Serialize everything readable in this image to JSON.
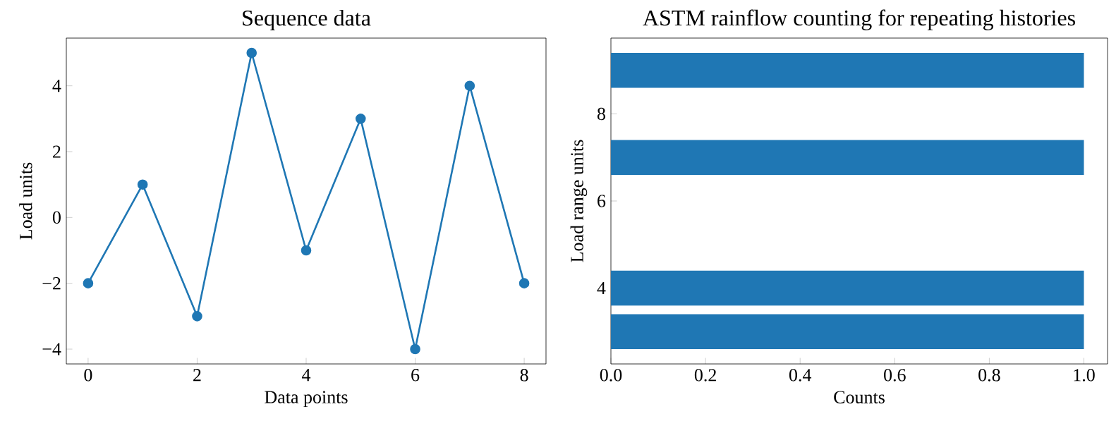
{
  "chart_data": [
    {
      "type": "line",
      "title": "Sequence data",
      "xlabel": "Data points",
      "ylabel": "Load units",
      "x": [
        0,
        1,
        2,
        3,
        4,
        5,
        6,
        7,
        8
      ],
      "series": [
        {
          "color": "#1f77b4",
          "values": [
            -2,
            1,
            -3,
            5,
            -1,
            3,
            -4,
            4,
            -2
          ]
        }
      ],
      "marker": "circle",
      "line_style": "solid",
      "xlim": [
        -0.4,
        8.4
      ],
      "ylim": [
        -4.45,
        5.45
      ],
      "xticks": [
        0,
        2,
        4,
        6,
        8
      ],
      "yticks": [
        {
          "value": -4,
          "label": "−4"
        },
        {
          "value": -2,
          "label": "−2"
        },
        0,
        2,
        4
      ]
    },
    {
      "type": "bar",
      "orientation": "horizontal",
      "title": "ASTM rainflow counting for repeating histories",
      "xlabel": "Counts",
      "ylabel": "Load range units",
      "x": [
        3,
        4,
        7,
        9
      ],
      "series": [
        {
          "color": "#1f77b4",
          "values": [
            1,
            1,
            1,
            1
          ]
        }
      ],
      "xlim": [
        0,
        1.05
      ],
      "ylim": [
        2.26,
        9.74
      ],
      "xticks": [
        {
          "value": 0,
          "label": "0.0"
        },
        0.2,
        0.4,
        0.6,
        0.8,
        {
          "value": 1,
          "label": "1.0"
        }
      ],
      "yticks": [
        4,
        6,
        8
      ]
    }
  ]
}
